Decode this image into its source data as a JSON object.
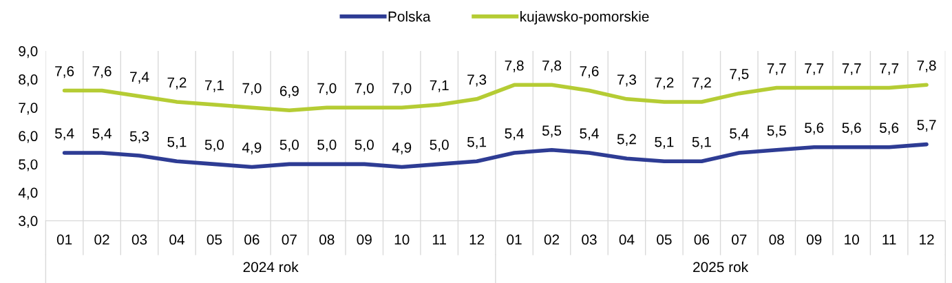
{
  "chart_data": {
    "type": "line",
    "categories": [
      "01",
      "02",
      "03",
      "04",
      "05",
      "06",
      "07",
      "08",
      "09",
      "10",
      "11",
      "12",
      "01",
      "02",
      "03",
      "04",
      "05",
      "06",
      "07",
      "08",
      "09",
      "10",
      "11",
      "12"
    ],
    "series": [
      {
        "name": "Polska",
        "color": "#2e3c94",
        "values": [
          5.4,
          5.4,
          5.3,
          5.1,
          5.0,
          4.9,
          5.0,
          5.0,
          5.0,
          4.9,
          5.0,
          5.1,
          5.4,
          5.5,
          5.4,
          5.2,
          5.1,
          5.1,
          5.4,
          5.5,
          5.6,
          5.6,
          5.6,
          5.7
        ],
        "value_labels": [
          "5,4",
          "5,4",
          "5,3",
          "5,1",
          "5,0",
          "4,9",
          "5,0",
          "5,0",
          "5,0",
          "4,9",
          "5,0",
          "5,1",
          "5,4",
          "5,5",
          "5,4",
          "5,2",
          "5,1",
          "5,1",
          "5,4",
          "5,5",
          "5,6",
          "5,6",
          "5,6",
          "5,7"
        ]
      },
      {
        "name": "kujawsko-pomorskie",
        "color": "#b5cc34",
        "values": [
          7.6,
          7.6,
          7.4,
          7.2,
          7.1,
          7.0,
          6.9,
          7.0,
          7.0,
          7.0,
          7.1,
          7.3,
          7.8,
          7.8,
          7.6,
          7.3,
          7.2,
          7.2,
          7.5,
          7.7,
          7.7,
          7.7,
          7.7,
          7.8
        ],
        "value_labels": [
          "7,6",
          "7,6",
          "7,4",
          "7,2",
          "7,1",
          "7,0",
          "6,9",
          "7,0",
          "7,0",
          "7,0",
          "7,1",
          "7,3",
          "7,8",
          "7,8",
          "7,6",
          "7,3",
          "7,2",
          "7,2",
          "7,5",
          "7,7",
          "7,7",
          "7,7",
          "7,7",
          "7,8"
        ]
      }
    ],
    "ylim": [
      3,
      9
    ],
    "yticks": [
      {
        "value": 3,
        "label": "3,0"
      },
      {
        "value": 4,
        "label": "4,0"
      },
      {
        "value": 5,
        "label": "5,0"
      },
      {
        "value": 6,
        "label": "6,0"
      },
      {
        "value": 7,
        "label": "7,0"
      },
      {
        "value": 8,
        "label": "8,0"
      },
      {
        "value": 9,
        "label": "9,0"
      }
    ],
    "annotations": [
      "2024 rok",
      "2025 rok"
    ],
    "grid": "x",
    "legend": "top",
    "marker": "none",
    "line_style": "solid"
  }
}
